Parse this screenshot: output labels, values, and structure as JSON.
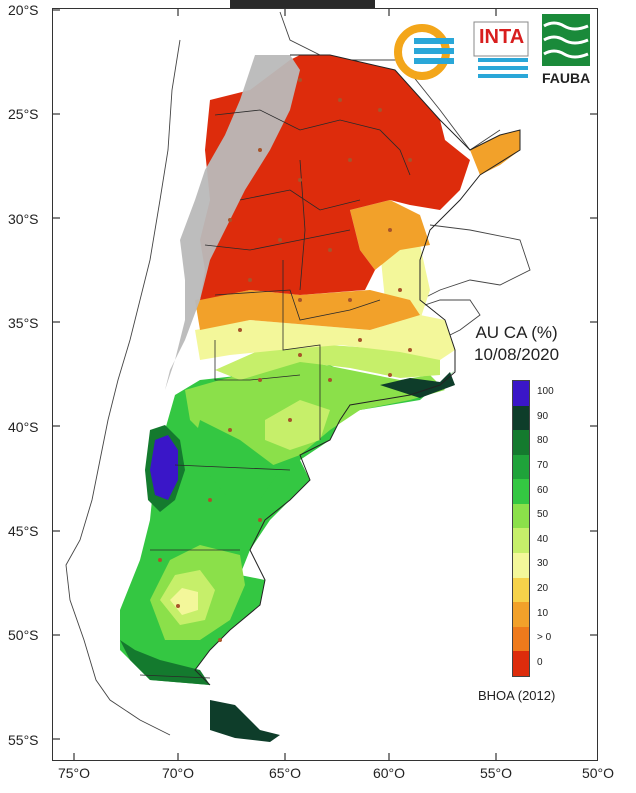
{
  "map": {
    "lat_labels": [
      "20°S",
      "25°S",
      "30°S",
      "35°S",
      "40°S",
      "45°S",
      "50°S",
      "55°S"
    ],
    "lon_labels": [
      "75°O",
      "70°O",
      "65°O",
      "60°O",
      "55°O",
      "50°O"
    ],
    "legend_title_line1": "AU CA (%)",
    "legend_title_line2": "10/08/2020",
    "legend_labels": [
      "100",
      "90",
      "80",
      "70",
      "60",
      "50",
      "40",
      "30",
      "20",
      "10",
      "> 0",
      "0"
    ],
    "legend_colors": [
      "#3a16c8",
      "#0e3d2a",
      "#147a2e",
      "#1fa33a",
      "#34c742",
      "#8be04a",
      "#c6ef6a",
      "#f3f79a",
      "#f6d24a",
      "#f2a12a",
      "#ee7a1c",
      "#dd2c0c"
    ],
    "source_label": "BHOA (2012)"
  },
  "logos": {
    "inta_text": "INTA",
    "fauba_text": "FAUBA",
    "inta_color": "#d81e1e",
    "fauba_color": "#1a8a3a",
    "ring_color": "#f3a61a",
    "wave_color": "#2aa7d8"
  }
}
